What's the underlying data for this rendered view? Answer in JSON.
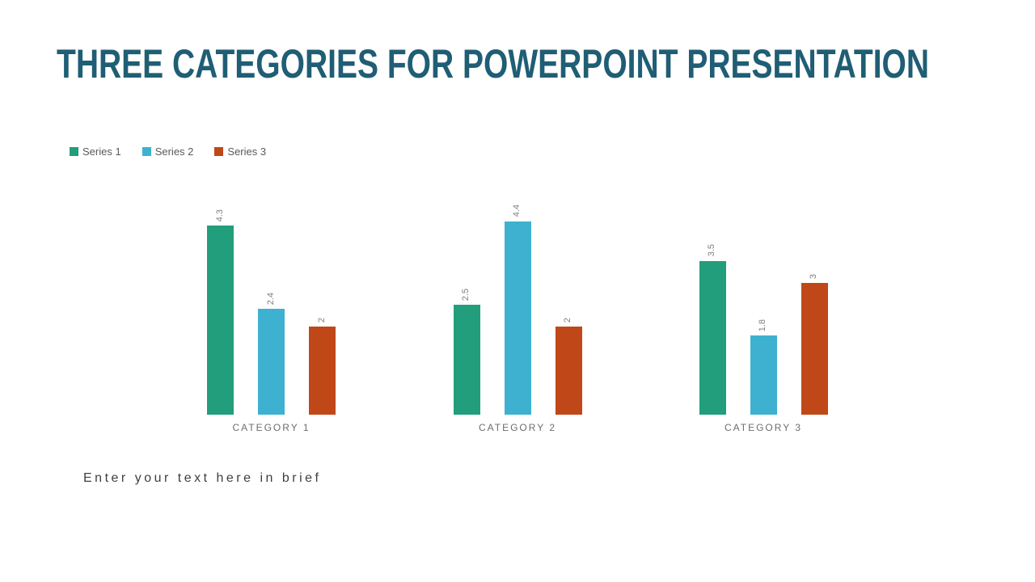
{
  "title": "THREE CATEGORIES FOR POWERPOINT PRESENTATION",
  "footer_text": "Enter your text here in brief",
  "colors": {
    "title": "#1F5E74",
    "series1": "#229E7C",
    "series2": "#3EB1D1",
    "series3": "#C04818",
    "legend_text": "#595959",
    "data_label": "#7F7F7F",
    "category_label": "#6D6D6D",
    "footer_text": "#3F3F3F",
    "background": "#FFFFFF"
  },
  "chart_data": {
    "type": "bar",
    "title": "",
    "xlabel": "",
    "ylabel": "",
    "categories": [
      "CATEGORY 1",
      "CATEGORY 2",
      "CATEGORY 3"
    ],
    "series": [
      {
        "name": "Series 1",
        "color": "#229E7C",
        "values": [
          4.3,
          2.5,
          3.5
        ]
      },
      {
        "name": "Series 2",
        "color": "#3EB1D1",
        "values": [
          2.4,
          4.4,
          1.8
        ]
      },
      {
        "name": "Series 3",
        "color": "#C04818",
        "values": [
          2,
          2,
          3
        ]
      }
    ],
    "data_labels": [
      "4.3",
      "2.4",
      "2",
      "2.5",
      "4.4",
      "2",
      "3.5",
      "1.8",
      "3"
    ],
    "data_label_rotation_deg": -90,
    "ylim": [
      0,
      4.4
    ],
    "grid": false,
    "axes_visible": false,
    "legend_position": "top-left"
  }
}
